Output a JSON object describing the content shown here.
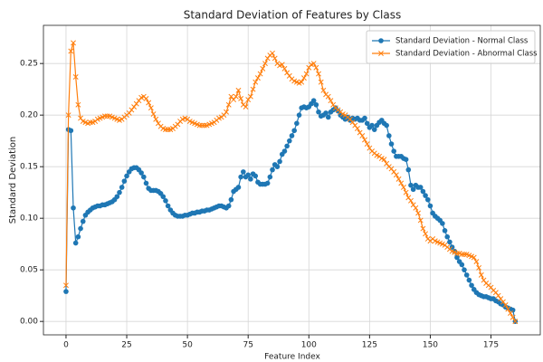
{
  "chart_data": {
    "type": "line",
    "title": "Standard Deviation of Features by Class",
    "x_label": "Feature Index",
    "y_label": "Standard Deviation",
    "x": [
      0,
      1,
      2,
      3,
      4,
      5,
      6,
      7,
      8,
      9,
      10,
      11,
      12,
      13,
      14,
      15,
      16,
      17,
      18,
      19,
      20,
      21,
      22,
      23,
      24,
      25,
      26,
      27,
      28,
      29,
      30,
      31,
      32,
      33,
      34,
      35,
      36,
      37,
      38,
      39,
      40,
      41,
      42,
      43,
      44,
      45,
      46,
      47,
      48,
      49,
      50,
      51,
      52,
      53,
      54,
      55,
      56,
      57,
      58,
      59,
      60,
      61,
      62,
      63,
      64,
      65,
      66,
      67,
      68,
      69,
      70,
      71,
      72,
      73,
      74,
      75,
      76,
      77,
      78,
      79,
      80,
      81,
      82,
      83,
      84,
      85,
      86,
      87,
      88,
      89,
      90,
      91,
      92,
      93,
      94,
      95,
      96,
      97,
      98,
      99,
      100,
      101,
      102,
      103,
      104,
      105,
      106,
      107,
      108,
      109,
      110,
      111,
      112,
      113,
      114,
      115,
      116,
      117,
      118,
      119,
      120,
      121,
      122,
      123,
      124,
      125,
      126,
      127,
      128,
      129,
      130,
      131,
      132,
      133,
      134,
      135,
      136,
      137,
      138,
      139,
      140,
      141,
      142,
      143,
      144,
      145,
      146,
      147,
      148,
      149,
      150,
      151,
      152,
      153,
      154,
      155,
      156,
      157,
      158,
      159,
      160,
      161,
      162,
      163,
      164,
      165,
      166,
      167,
      168,
      169,
      170,
      171,
      172,
      173,
      174,
      175,
      176,
      177,
      178,
      179,
      180,
      181,
      182,
      183,
      184,
      185
    ],
    "series": [
      {
        "name": "Standard Deviation - Normal Class",
        "color": "#1f77b4",
        "marker": "o",
        "values": [
          0.029,
          0.186,
          0.185,
          0.11,
          0.076,
          0.082,
          0.09,
          0.097,
          0.103,
          0.106,
          0.108,
          0.11,
          0.111,
          0.112,
          0.112,
          0.113,
          0.113,
          0.114,
          0.115,
          0.116,
          0.118,
          0.121,
          0.125,
          0.13,
          0.136,
          0.141,
          0.145,
          0.148,
          0.149,
          0.149,
          0.147,
          0.144,
          0.14,
          0.134,
          0.129,
          0.127,
          0.127,
          0.127,
          0.126,
          0.124,
          0.121,
          0.117,
          0.112,
          0.108,
          0.105,
          0.103,
          0.102,
          0.102,
          0.102,
          0.103,
          0.103,
          0.104,
          0.105,
          0.105,
          0.106,
          0.106,
          0.107,
          0.107,
          0.108,
          0.108,
          0.109,
          0.11,
          0.111,
          0.112,
          0.112,
          0.111,
          0.11,
          0.112,
          0.118,
          0.126,
          0.128,
          0.13,
          0.14,
          0.145,
          0.14,
          0.142,
          0.138,
          0.143,
          0.141,
          0.135,
          0.133,
          0.133,
          0.133,
          0.134,
          0.14,
          0.147,
          0.152,
          0.15,
          0.155,
          0.162,
          0.165,
          0.17,
          0.175,
          0.18,
          0.185,
          0.192,
          0.2,
          0.207,
          0.208,
          0.207,
          0.208,
          0.211,
          0.214,
          0.21,
          0.203,
          0.199,
          0.2,
          0.202,
          0.198,
          0.203,
          0.205,
          0.207,
          0.204,
          0.2,
          0.198,
          0.196,
          0.198,
          0.195,
          0.197,
          0.196,
          0.197,
          0.195,
          0.195,
          0.197,
          0.192,
          0.188,
          0.19,
          0.186,
          0.19,
          0.193,
          0.195,
          0.192,
          0.19,
          0.18,
          0.172,
          0.165,
          0.16,
          0.16,
          0.16,
          0.158,
          0.157,
          0.147,
          0.132,
          0.128,
          0.132,
          0.13,
          0.13,
          0.126,
          0.122,
          0.118,
          0.112,
          0.105,
          0.102,
          0.1,
          0.098,
          0.095,
          0.088,
          0.082,
          0.077,
          0.072,
          0.068,
          0.062,
          0.058,
          0.055,
          0.05,
          0.045,
          0.04,
          0.035,
          0.031,
          0.028,
          0.026,
          0.025,
          0.024,
          0.024,
          0.023,
          0.022,
          0.022,
          0.02,
          0.019,
          0.017,
          0.016,
          0.014,
          0.013,
          0.012,
          0.011,
          0.0
        ]
      },
      {
        "name": "Standard Deviation - Abnormal Class",
        "color": "#ff7f0e",
        "marker": "x",
        "values": [
          0.035,
          0.2,
          0.262,
          0.27,
          0.237,
          0.21,
          0.197,
          0.194,
          0.193,
          0.192,
          0.193,
          0.193,
          0.194,
          0.196,
          0.197,
          0.198,
          0.199,
          0.199,
          0.199,
          0.198,
          0.197,
          0.196,
          0.195,
          0.196,
          0.198,
          0.2,
          0.202,
          0.205,
          0.208,
          0.211,
          0.214,
          0.217,
          0.218,
          0.216,
          0.212,
          0.207,
          0.201,
          0.196,
          0.192,
          0.189,
          0.187,
          0.186,
          0.186,
          0.186,
          0.187,
          0.189,
          0.191,
          0.194,
          0.196,
          0.197,
          0.196,
          0.194,
          0.193,
          0.192,
          0.191,
          0.19,
          0.19,
          0.19,
          0.19,
          0.191,
          0.192,
          0.193,
          0.195,
          0.197,
          0.198,
          0.2,
          0.203,
          0.21,
          0.218,
          0.215,
          0.218,
          0.224,
          0.216,
          0.21,
          0.208,
          0.215,
          0.218,
          0.225,
          0.232,
          0.236,
          0.24,
          0.245,
          0.25,
          0.255,
          0.258,
          0.26,
          0.255,
          0.25,
          0.248,
          0.249,
          0.245,
          0.241,
          0.238,
          0.235,
          0.233,
          0.232,
          0.231,
          0.232,
          0.236,
          0.24,
          0.246,
          0.249,
          0.25,
          0.246,
          0.24,
          0.232,
          0.224,
          0.22,
          0.218,
          0.214,
          0.21,
          0.207,
          0.205,
          0.203,
          0.201,
          0.2,
          0.198,
          0.196,
          0.193,
          0.19,
          0.187,
          0.183,
          0.18,
          0.176,
          0.172,
          0.168,
          0.165,
          0.163,
          0.161,
          0.16,
          0.158,
          0.157,
          0.153,
          0.15,
          0.148,
          0.145,
          0.142,
          0.138,
          0.134,
          0.13,
          0.125,
          0.12,
          0.117,
          0.113,
          0.11,
          0.105,
          0.098,
          0.09,
          0.085,
          0.08,
          0.078,
          0.08,
          0.078,
          0.077,
          0.076,
          0.075,
          0.074,
          0.072,
          0.07,
          0.068,
          0.067,
          0.066,
          0.066,
          0.065,
          0.065,
          0.065,
          0.064,
          0.063,
          0.062,
          0.058,
          0.052,
          0.045,
          0.04,
          0.037,
          0.035,
          0.033,
          0.03,
          0.028,
          0.025,
          0.022,
          0.019,
          0.016,
          0.012,
          0.008,
          0.004,
          0.0
        ]
      }
    ],
    "xlim": [
      -9.3,
      195.3
    ],
    "ylim": [
      -0.013,
      0.287
    ],
    "xticks": [
      0,
      25,
      50,
      75,
      100,
      125,
      150,
      175
    ],
    "yticks": [
      {
        "value": 0,
        "label": "0.00"
      },
      {
        "value": 0.05,
        "label": "0.05"
      },
      {
        "value": 0.1,
        "label": "0.10"
      },
      {
        "value": 0.15,
        "label": "0.15"
      },
      {
        "value": 0.2,
        "label": "0.20"
      },
      {
        "value": 0.25,
        "label": "0.25"
      }
    ],
    "grid": true,
    "legend": "upper right"
  }
}
